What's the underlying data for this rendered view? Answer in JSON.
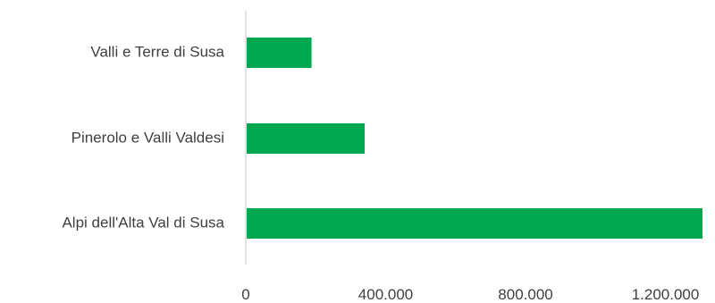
{
  "chart_data": {
    "type": "bar",
    "orientation": "horizontal",
    "categories": [
      "Valli e Terre di Susa",
      "Pinerolo e Valli Valdesi",
      "Alpi dell'Alta Val di Susa"
    ],
    "values": [
      188000,
      340000,
      1306000
    ],
    "x_ticks": [
      0,
      400000,
      800000,
      1200000
    ],
    "x_tick_labels": [
      "0",
      "400.000",
      "800.000",
      "1.200.000"
    ],
    "xlim": [
      0,
      1306000
    ],
    "bar_color": "#00a94f",
    "axis_color": "#d9d9d9",
    "grid": false,
    "legend": "none"
  }
}
